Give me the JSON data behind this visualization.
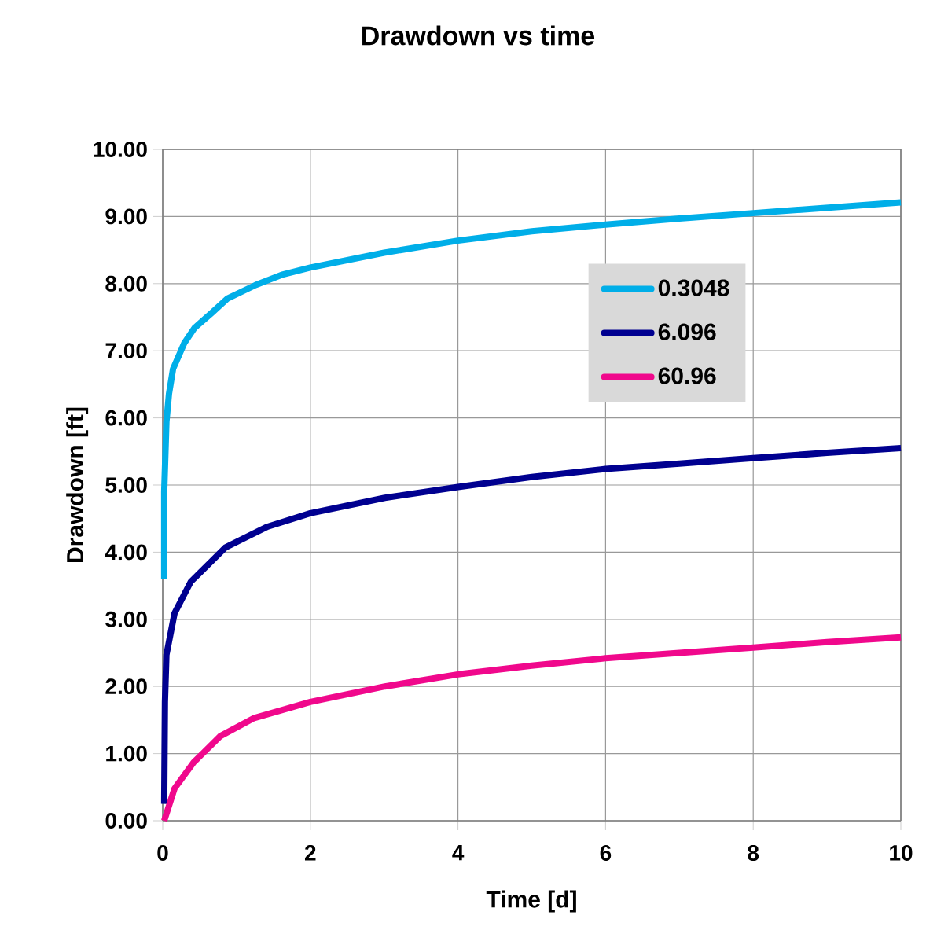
{
  "chart_data": {
    "type": "line",
    "title": "Drawdown vs time",
    "xlabel": "Time [d]",
    "ylabel": "Drawdown [ft]",
    "xlim": [
      0,
      10
    ],
    "ylim": [
      0,
      10
    ],
    "xticks": [
      0,
      2,
      4,
      6,
      8,
      10
    ],
    "yticks": [
      {
        "value": 0,
        "label": "0.00"
      },
      {
        "value": 1,
        "label": "1.00"
      },
      {
        "value": 2,
        "label": "2.00"
      },
      {
        "value": 3,
        "label": "3.00"
      },
      {
        "value": 4,
        "label": "4.00"
      },
      {
        "value": 5,
        "label": "5.00"
      },
      {
        "value": 6,
        "label": "6.00"
      },
      {
        "value": 7,
        "label": "7.00"
      },
      {
        "value": 8,
        "label": "8.00"
      },
      {
        "value": 9,
        "label": "9.00"
      },
      {
        "value": 10,
        "label": "10.00"
      }
    ],
    "grid": true,
    "legend": "right",
    "line_style": "solid",
    "marker": "none",
    "series": [
      {
        "name": "0.3048",
        "color": "#00aee8",
        "x": [
          0.02,
          0.02,
          0.05,
          0.085,
          0.14,
          0.29,
          0.43,
          0.66,
          0.88,
          1.26,
          1.61,
          2.0,
          3,
          4,
          5,
          6,
          7,
          8,
          9,
          10
        ],
        "values": [
          3.6,
          4.9,
          5.94,
          6.36,
          6.73,
          7.11,
          7.34,
          7.56,
          7.78,
          7.98,
          8.13,
          8.24,
          8.46,
          8.64,
          8.78,
          8.88,
          8.97,
          9.05,
          9.13,
          9.21
        ]
      },
      {
        "name": "6.096",
        "color": "#000090",
        "x": [
          0.02,
          0.03,
          0.05,
          0.16,
          0.38,
          0.85,
          1.42,
          2.0,
          3.01,
          4,
          5,
          6,
          7,
          8,
          9,
          10
        ],
        "values": [
          0.25,
          1.77,
          2.47,
          3.09,
          3.56,
          4.07,
          4.38,
          4.58,
          4.81,
          4.97,
          5.12,
          5.24,
          5.32,
          5.4,
          5.48,
          5.55
        ]
      },
      {
        "name": "60.96",
        "color": "#f0088c",
        "x": [
          0.02,
          0.16,
          0.42,
          0.78,
          1.24,
          2.0,
          3.01,
          4,
          5,
          6,
          7,
          8,
          9,
          10
        ],
        "values": [
          0.0,
          0.48,
          0.87,
          1.26,
          1.53,
          1.77,
          2.0,
          2.18,
          2.31,
          2.42,
          2.5,
          2.58,
          2.66,
          2.73
        ]
      }
    ]
  }
}
